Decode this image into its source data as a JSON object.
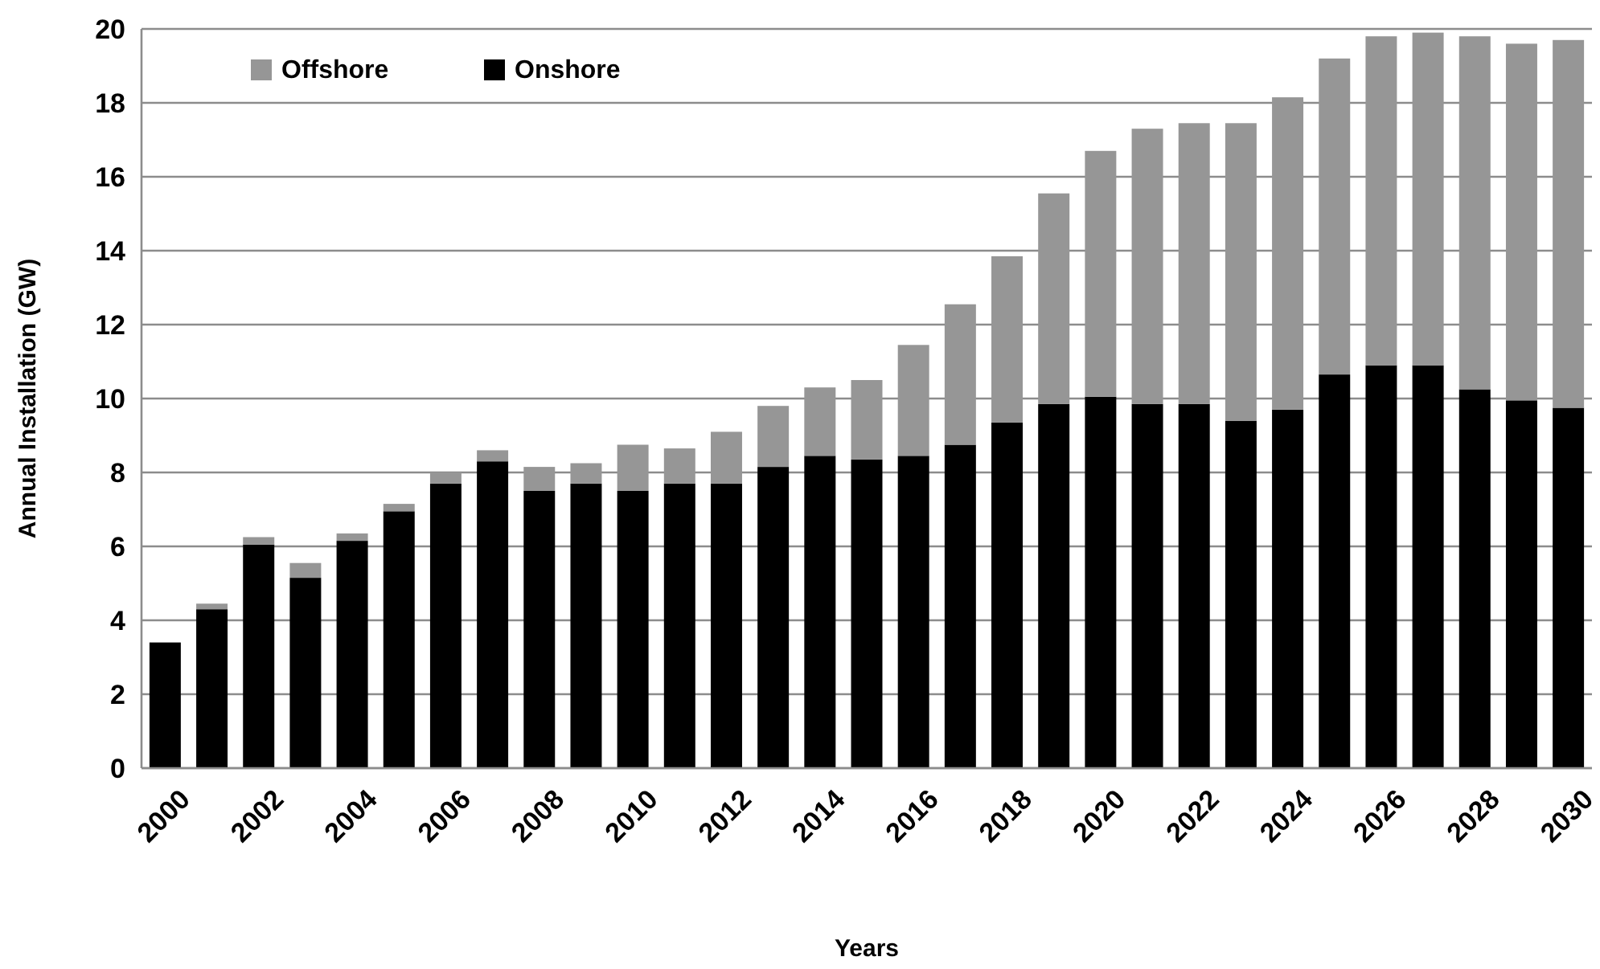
{
  "chart_data": {
    "type": "bar",
    "stacked": true,
    "xlabel": "Years",
    "ylabel": "Annual Installation  (GW)",
    "categories": [
      "2000",
      null,
      "2002",
      null,
      "2004",
      null,
      "2006",
      null,
      "2008",
      null,
      "2010",
      null,
      "2012",
      null,
      "2014",
      null,
      "2016",
      null,
      "2018",
      null,
      "2020",
      null,
      "2022",
      null,
      "2024",
      null,
      "2026",
      null,
      "2028",
      null,
      "2030"
    ],
    "series": [
      {
        "name": "Onshore",
        "color": "#000000",
        "values": [
          3.4,
          4.3,
          6.05,
          5.15,
          6.15,
          6.95,
          7.7,
          8.3,
          7.5,
          7.7,
          7.5,
          7.7,
          7.7,
          8.15,
          8.45,
          8.35,
          8.45,
          8.75,
          9.35,
          9.85,
          10.05,
          9.85,
          9.85,
          9.4,
          9.7,
          10.65,
          10.9,
          10.9,
          10.25,
          9.95,
          9.75
        ]
      },
      {
        "name": "Offshore",
        "color": "#969696",
        "values": [
          0,
          0.15,
          0.2,
          0.4,
          0.2,
          0.2,
          0.3,
          0.3,
          0.65,
          0.55,
          1.25,
          0.95,
          1.4,
          1.65,
          1.85,
          2.15,
          3.0,
          3.8,
          4.5,
          5.7,
          6.65,
          7.45,
          7.6,
          8.05,
          8.45,
          8.55,
          8.9,
          9.0,
          9.55,
          9.65,
          9.95
        ]
      }
    ],
    "ylim": [
      0,
      20
    ],
    "yticks": [
      0,
      2,
      4,
      6,
      8,
      10,
      12,
      14,
      16,
      18,
      20
    ],
    "grid": "y",
    "legend": "top left"
  }
}
